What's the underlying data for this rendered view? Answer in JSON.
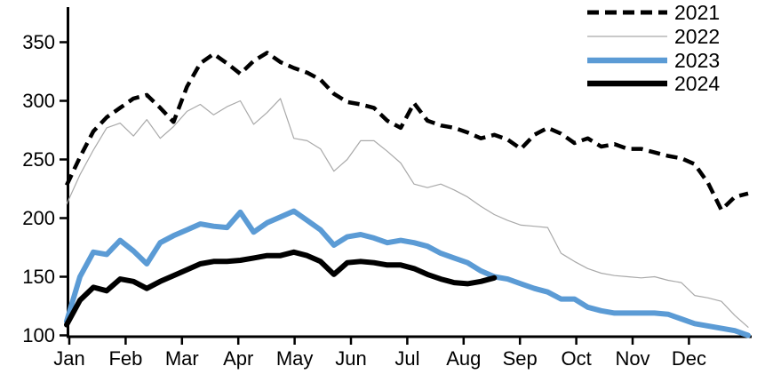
{
  "chart_data": {
    "type": "line",
    "title": "",
    "x_unit": "weeks of year",
    "x_axis": {
      "tick_labels": [
        "Jan",
        "Feb",
        "Mar",
        "Apr",
        "May",
        "Jun",
        "Jul",
        "Aug",
        "Sep",
        "Oct",
        "Nov",
        "Dec"
      ]
    },
    "y_axis": {
      "ticks": [
        100,
        150,
        200,
        250,
        300,
        350
      ],
      "min": 100,
      "max": 380,
      "grid": false
    },
    "legend": {
      "position": "top-right",
      "entries": [
        "2021",
        "2022",
        "2023",
        "2024"
      ]
    },
    "axis_color": "#000000",
    "series": [
      {
        "name": "2021",
        "color": "#000000",
        "style": "dashed",
        "width": 4.5,
        "values": [
          228,
          252,
          274,
          286,
          294,
          302,
          305,
          294,
          282,
          312,
          332,
          340,
          332,
          323,
          334,
          341,
          333,
          328,
          324,
          318,
          306,
          299,
          297,
          294,
          283,
          277,
          298,
          283,
          279,
          277,
          273,
          268,
          271,
          267,
          259,
          271,
          277,
          272,
          264,
          268,
          261,
          263,
          259,
          259,
          256,
          253,
          251,
          246,
          230,
          207,
          218,
          221
        ]
      },
      {
        "name": "2022",
        "color": "#a9a9a9",
        "style": "solid",
        "width": 1.2,
        "values": [
          212,
          237,
          258,
          277,
          281,
          270,
          284,
          268,
          278,
          291,
          297,
          288,
          295,
          300,
          280,
          290,
          302,
          268,
          266,
          259,
          240,
          250,
          266,
          266,
          257,
          247,
          229,
          226,
          229,
          224,
          218,
          210,
          203,
          198,
          194,
          193,
          192,
          170,
          163,
          157,
          153,
          151,
          150,
          149,
          150,
          147,
          145,
          134,
          132,
          129,
          117,
          107
        ]
      },
      {
        "name": "2023",
        "color": "#5b9bd5",
        "style": "solid",
        "width": 6,
        "values": [
          112,
          150,
          171,
          169,
          181,
          172,
          161,
          179,
          185,
          190,
          195,
          193,
          192,
          205,
          188,
          196,
          201,
          206,
          198,
          190,
          177,
          184,
          186,
          183,
          179,
          181,
          179,
          176,
          170,
          166,
          162,
          155,
          150,
          148,
          144,
          140,
          137,
          131,
          131,
          124,
          121,
          119,
          119,
          119,
          119,
          118,
          114,
          110,
          108,
          106,
          104,
          100
        ]
      },
      {
        "name": "2024",
        "color": "#000000",
        "style": "solid",
        "width": 6,
        "values": [
          109,
          130,
          141,
          138,
          148,
          146,
          140,
          146,
          151,
          156,
          161,
          163,
          163,
          164,
          166,
          168,
          168,
          171,
          168,
          163,
          152,
          162,
          163,
          162,
          160,
          160,
          157,
          152,
          148,
          145,
          144,
          146,
          149
        ]
      }
    ]
  }
}
